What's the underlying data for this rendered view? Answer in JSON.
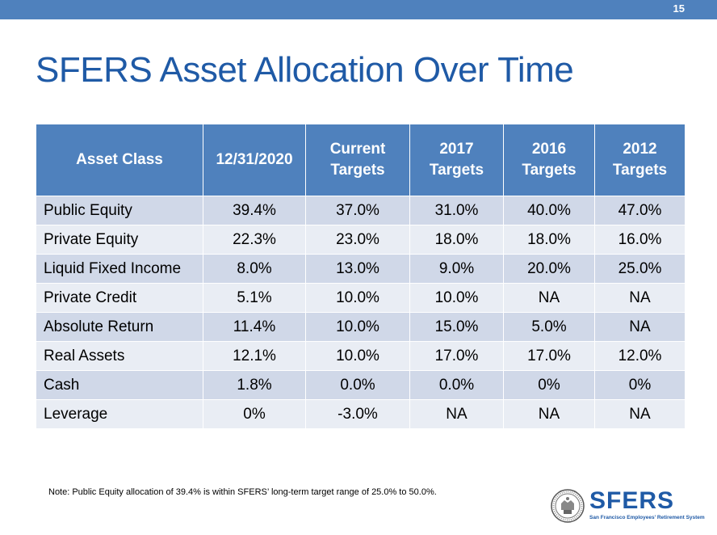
{
  "page_number": "15",
  "title": "SFERS Asset Allocation Over Time",
  "table": {
    "headers": [
      [
        "Asset Class"
      ],
      [
        "12/31/2020"
      ],
      [
        "Current",
        "Targets"
      ],
      [
        "2017",
        "Targets"
      ],
      [
        "2016",
        "Targets"
      ],
      [
        "2012",
        "Targets"
      ]
    ],
    "rows": [
      [
        "Public Equity",
        "39.4%",
        "37.0%",
        "31.0%",
        "40.0%",
        "47.0%"
      ],
      [
        "Private Equity",
        "22.3%",
        "23.0%",
        "18.0%",
        "18.0%",
        "16.0%"
      ],
      [
        "Liquid Fixed Income",
        "8.0%",
        "13.0%",
        "9.0%",
        "20.0%",
        "25.0%"
      ],
      [
        "Private Credit",
        "5.1%",
        "10.0%",
        "10.0%",
        "NA",
        "NA"
      ],
      [
        "Absolute Return",
        "11.4%",
        "10.0%",
        "15.0%",
        "5.0%",
        "NA"
      ],
      [
        "Real Assets",
        "12.1%",
        "10.0%",
        "17.0%",
        "17.0%",
        "12.0%"
      ],
      [
        "Cash",
        "1.8%",
        "0.0%",
        "0.0%",
        "0%",
        "0%"
      ],
      [
        "Leverage",
        "0%",
        "-3.0%",
        "NA",
        "NA",
        "NA"
      ]
    ]
  },
  "note": "Note: Public Equity allocation of 39.4% is within SFERS’ long-term target range of 25.0% to 50.0%.",
  "logo": {
    "text": "SFERS",
    "subtitle": "San Francisco Employees’ Retirement System",
    "icon": "city-seal-icon"
  },
  "colors": {
    "header_bar": "#4f81bd",
    "title": "#1f5aa6",
    "row_dark": "#d0d8e8",
    "row_light": "#e9edf4"
  }
}
